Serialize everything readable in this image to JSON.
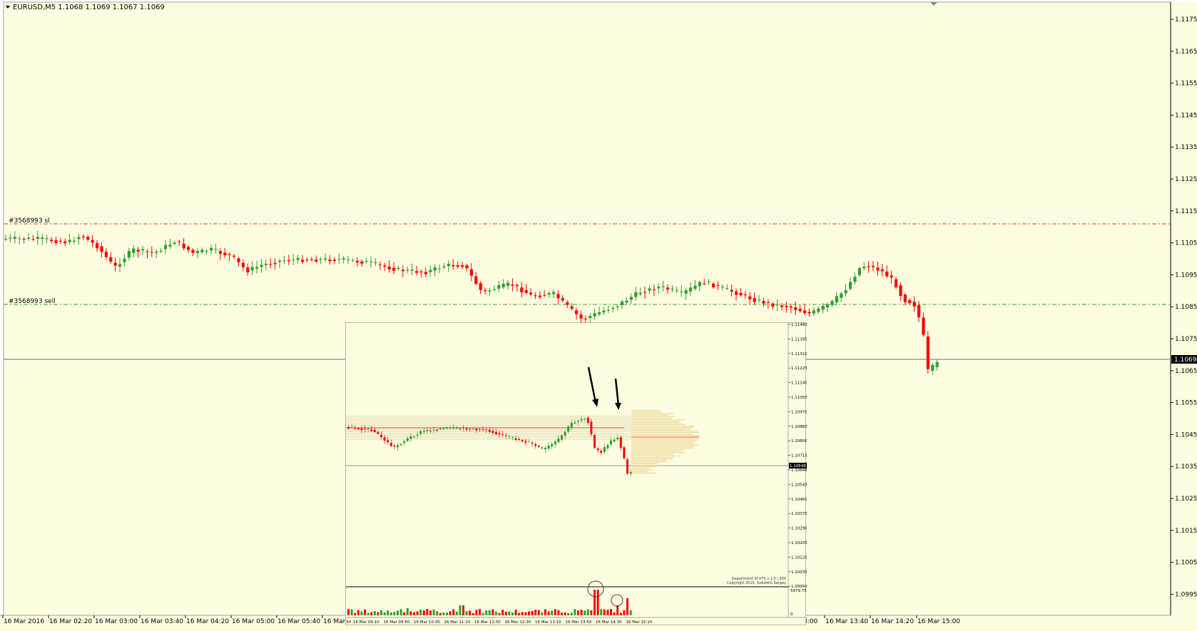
{
  "main": {
    "symbol_header": "EURUSD,M5  1.1068 1.1069 1.1067 1.1069",
    "current_price_label": "1.1069",
    "sl_label": "#3568993 sl",
    "sell_label": "#3568993 sell",
    "price_ticks": [
      "1.1175",
      "1.1165",
      "1.1155",
      "1.1145",
      "1.1135",
      "1.1125",
      "1.1115",
      "1.1105",
      "1.1095",
      "1.1085",
      "1.1075",
      "1.1065",
      "1.1055",
      "1.1045",
      "1.1035",
      "1.1025",
      "1.1015",
      "1.1005",
      "1.0995"
    ],
    "time_ticks": [
      "16 Mar 2016",
      "16 Mar 02:20",
      "16 Mar 03:00",
      "16 Mar 03:40",
      "16 Mar 04:20",
      "16 Mar 05:00",
      "16 Mar 05:40",
      "16 Mar",
      "3:00",
      "16 Mar 13:40",
      "16 Mar 14:20",
      "16 Mar 15:00"
    ],
    "colors": {
      "background": "#fffde1",
      "bull": "#2ca02c",
      "bear": "#ff0000",
      "sl_line": "#ff3333",
      "sell_line": "#2ca02c",
      "price_line": "#707070"
    }
  },
  "inset": {
    "price_ticks": [
      "1.11480",
      "1.11395",
      "1.11310",
      "1.11225",
      "1.11140",
      "1.11055",
      "1.10970",
      "1.10885",
      "1.10800",
      "1.10715",
      "1.10648",
      "1.10545",
      "1.10460",
      "1.10375",
      "1.10290",
      "1.10205",
      "1.10120",
      "1.10035",
      "1.09950"
    ],
    "current_price_label": "1.10648",
    "volume_ticks": [
      "5979.75",
      "0"
    ],
    "time_ticks": [
      "30",
      "16 Mar 09:10",
      "16 Mar 09:50",
      "16 Mar 10:30",
      "16 Mar 11:10",
      "16 Mar 11:50",
      "16 Mar 12:30",
      "16 Mar 13:10",
      "16 Mar 13:50",
      "16 Mar 14:30",
      "16 Mar 15:10"
    ],
    "credit_line1": "Department of VTS  v 1.0 | 930",
    "credit_line2": "Copyright 2015, Golubkin Sergey"
  }
}
